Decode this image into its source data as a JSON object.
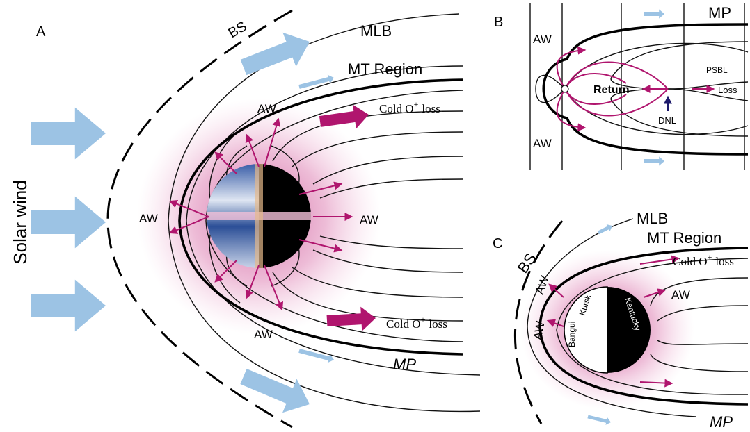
{
  "panel_a": {
    "label": "A",
    "solar_wind": "Solar wind",
    "bow_shock": "BS",
    "mlb": "MLB",
    "mt_region": "MT Region",
    "mp": "MP",
    "aw_labels": [
      "AW",
      "AW",
      "AW",
      "AW"
    ],
    "cold_loss": [
      {
        "base": "Cold O",
        "sup": "+",
        "tail": "loss"
      },
      {
        "base": "Cold O",
        "sup": "+",
        "tail": "loss"
      }
    ]
  },
  "panel_b": {
    "label": "B",
    "mp": "MP",
    "aw_labels": [
      "AW",
      "AW"
    ],
    "psbl": "PSBL",
    "return": "Return",
    "loss": "Loss",
    "dnl": "DNL"
  },
  "panel_c": {
    "label": "C",
    "bow_shock": "BS",
    "mlb": "MLB",
    "mt_region": "MT Region",
    "mp": "MP",
    "aw_labels": [
      "AW",
      "AW",
      "AW"
    ],
    "cold_loss": {
      "base": "Cold O",
      "sup": "+",
      "tail": "loss"
    },
    "sites": [
      "Bangui",
      "Kursk",
      "Kentucky"
    ]
  }
}
